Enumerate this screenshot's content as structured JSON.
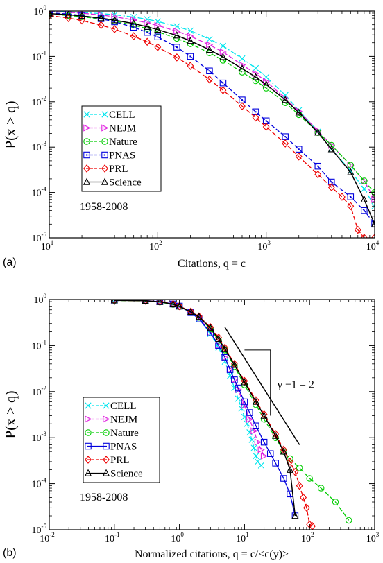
{
  "chart_data": [
    {
      "type": "line",
      "panel_label": "(a)",
      "xlabel": "Citations, q = c",
      "ylabel": "P(x > q)",
      "x_scale": "log",
      "y_scale": "log",
      "xlim": [
        10,
        10000
      ],
      "ylim": [
        1e-05,
        1
      ],
      "x_ticks": [
        {
          "base": "10",
          "exp": "1",
          "v": 10
        },
        {
          "base": "10",
          "exp": "2",
          "v": 100
        },
        {
          "base": "10",
          "exp": "3",
          "v": 1000
        },
        {
          "base": "10",
          "exp": "4",
          "v": 10000
        }
      ],
      "y_ticks": [
        {
          "base": "10",
          "exp": "-5",
          "v": 1e-05
        },
        {
          "base": "10",
          "exp": "-4",
          "v": 0.0001
        },
        {
          "base": "10",
          "exp": "-3",
          "v": 0.001
        },
        {
          "base": "10",
          "exp": "-2",
          "v": 0.01
        },
        {
          "base": "10",
          "exp": "-1",
          "v": 0.1
        },
        {
          "base": "10",
          "exp": "0",
          "v": 1
        }
      ],
      "annotation": "1958-2008",
      "legend_position": "center-left",
      "series": [
        {
          "name": "CELL",
          "color": "#00e5ee",
          "marker": "x",
          "dash": "8,3,2,3",
          "x": [
            10,
            15,
            20,
            30,
            40,
            60,
            80,
            100,
            150,
            200,
            300,
            400,
            600,
            800,
            1000,
            1500,
            2000,
            3000,
            4000,
            6000,
            8000,
            10000
          ],
          "y": [
            0.98,
            0.96,
            0.93,
            0.88,
            0.83,
            0.74,
            0.66,
            0.59,
            0.46,
            0.37,
            0.24,
            0.17,
            0.09,
            0.055,
            0.035,
            0.014,
            0.0065,
            0.0022,
            0.0009,
            0.0003,
            0.00012,
            5e-05
          ]
        },
        {
          "name": "NEJM",
          "color": "#e020e0",
          "marker": "tri-right",
          "dash": "7,3",
          "x": [
            10,
            15,
            20,
            30,
            40,
            60,
            80,
            100,
            150,
            200,
            300,
            400,
            600,
            800,
            1000,
            1500,
            2000,
            3000,
            4000,
            6000,
            8000,
            10000
          ],
          "y": [
            0.97,
            0.94,
            0.9,
            0.82,
            0.75,
            0.64,
            0.55,
            0.48,
            0.36,
            0.28,
            0.18,
            0.125,
            0.065,
            0.042,
            0.028,
            0.012,
            0.0062,
            0.0023,
            0.0011,
            0.0004,
            0.00018,
            7e-05
          ]
        },
        {
          "name": "Nature",
          "color": "#00cc00",
          "marker": "circle",
          "dash": "6,3",
          "x": [
            10,
            15,
            20,
            30,
            40,
            60,
            80,
            100,
            150,
            200,
            300,
            400,
            600,
            800,
            1000,
            1500,
            2000,
            3000,
            4000,
            6000,
            8000,
            10000
          ],
          "y": [
            0.85,
            0.8,
            0.75,
            0.67,
            0.6,
            0.49,
            0.41,
            0.35,
            0.25,
            0.19,
            0.12,
            0.082,
            0.045,
            0.029,
            0.02,
            0.0095,
            0.0052,
            0.0021,
            0.0011,
            0.0004,
            0.00018,
            0.0001
          ]
        },
        {
          "name": "PNAS",
          "color": "#0000dd",
          "marker": "square-dot",
          "dash": "6,3",
          "x": [
            10,
            15,
            20,
            30,
            40,
            60,
            80,
            100,
            150,
            200,
            300,
            400,
            600,
            800,
            1000,
            1500,
            2000,
            3000,
            4000,
            6000,
            8000,
            10000
          ],
          "y": [
            0.92,
            0.86,
            0.8,
            0.68,
            0.58,
            0.44,
            0.34,
            0.27,
            0.16,
            0.1,
            0.048,
            0.026,
            0.011,
            0.006,
            0.0038,
            0.0017,
            0.0009,
            0.00038,
            0.00017,
            8e-05,
            4e-05,
            2e-05
          ]
        },
        {
          "name": "PRL",
          "color": "#ee0000",
          "marker": "diamond",
          "dash": "7,3",
          "x": [
            10,
            15,
            20,
            30,
            40,
            60,
            80,
            100,
            150,
            200,
            300,
            400,
            600,
            800,
            1000,
            1500,
            2000,
            3000,
            4000,
            5000,
            6000,
            7000,
            8000,
            10000
          ],
          "y": [
            0.8,
            0.7,
            0.62,
            0.49,
            0.4,
            0.28,
            0.21,
            0.16,
            0.095,
            0.062,
            0.031,
            0.018,
            0.008,
            0.0045,
            0.0028,
            0.0012,
            0.00062,
            0.00025,
            0.00013,
            8e-05,
            5e-05,
            1.5e-05,
            1e-05,
            1e-05
          ]
        },
        {
          "name": "Science",
          "color": "#000000",
          "marker": "triangle",
          "dash": "",
          "x": [
            10,
            15,
            20,
            30,
            40,
            60,
            80,
            100,
            150,
            200,
            300,
            400,
            600,
            800,
            1000,
            1500,
            2000,
            3000,
            4000,
            6000,
            8000,
            10000
          ],
          "y": [
            0.88,
            0.83,
            0.78,
            0.7,
            0.63,
            0.53,
            0.45,
            0.39,
            0.29,
            0.22,
            0.14,
            0.097,
            0.054,
            0.035,
            0.024,
            0.011,
            0.0058,
            0.0021,
            0.0009,
            0.00028,
            7e-05,
            2e-05
          ]
        }
      ]
    },
    {
      "type": "line",
      "panel_label": "(b)",
      "xlabel": "Normalized citations, q = c/<c(y)>",
      "ylabel": "P(x > q)",
      "x_scale": "log",
      "y_scale": "log",
      "xlim": [
        0.01,
        1000
      ],
      "ylim": [
        1e-05,
        1
      ],
      "x_ticks": [
        {
          "base": "10",
          "exp": "-2",
          "v": 0.01
        },
        {
          "base": "10",
          "exp": "-1",
          "v": 0.1
        },
        {
          "base": "10",
          "exp": "0",
          "v": 1
        },
        {
          "base": "10",
          "exp": "1",
          "v": 10
        },
        {
          "base": "10",
          "exp": "2",
          "v": 100
        },
        {
          "base": "10",
          "exp": "3",
          "v": 1000
        }
      ],
      "y_ticks": [
        {
          "base": "10",
          "exp": "-5",
          "v": 1e-05
        },
        {
          "base": "10",
          "exp": "-4",
          "v": 0.0001
        },
        {
          "base": "10",
          "exp": "-3",
          "v": 0.001
        },
        {
          "base": "10",
          "exp": "-2",
          "v": 0.01
        },
        {
          "base": "10",
          "exp": "-1",
          "v": 0.1
        },
        {
          "base": "10",
          "exp": "0",
          "v": 1
        }
      ],
      "annotation": "1958-2008",
      "slope_label": "γ −1 = 2",
      "legend_position": "bottom-left",
      "series": [
        {
          "name": "CELL",
          "color": "#00e5ee",
          "marker": "x",
          "dash": "6,3",
          "x": [
            0.1,
            0.3,
            0.5,
            0.8,
            1,
            1.5,
            2,
            3,
            4,
            5,
            6,
            7,
            8,
            9,
            10,
            11,
            12,
            13,
            14,
            15,
            16,
            18
          ],
          "y": [
            0.97,
            0.95,
            0.9,
            0.8,
            0.72,
            0.52,
            0.38,
            0.18,
            0.09,
            0.045,
            0.022,
            0.012,
            0.007,
            0.0043,
            0.0028,
            0.002,
            0.0013,
            0.0009,
            0.0006,
            0.0004,
            0.0003,
            0.00025
          ]
        },
        {
          "name": "NEJM",
          "color": "#e020e0",
          "marker": "tri-right",
          "dash": "6,3",
          "x": [
            0.1,
            0.3,
            0.5,
            0.8,
            1,
            1.5,
            2,
            3,
            4,
            5,
            6,
            7,
            8,
            10,
            12,
            14,
            16,
            18,
            20
          ],
          "y": [
            0.97,
            0.95,
            0.9,
            0.8,
            0.72,
            0.53,
            0.4,
            0.2,
            0.1,
            0.055,
            0.03,
            0.018,
            0.011,
            0.005,
            0.0025,
            0.0014,
            0.0008,
            0.00055,
            0.0004
          ]
        },
        {
          "name": "Nature",
          "color": "#00cc00",
          "marker": "circle",
          "dash": "7,3",
          "x": [
            0.1,
            0.3,
            0.5,
            0.8,
            1,
            1.5,
            2,
            3,
            4,
            5,
            7,
            10,
            15,
            20,
            30,
            40,
            50,
            70,
            100,
            150,
            250,
            400
          ],
          "y": [
            0.95,
            0.93,
            0.88,
            0.78,
            0.7,
            0.53,
            0.41,
            0.23,
            0.13,
            0.08,
            0.035,
            0.014,
            0.0052,
            0.0025,
            0.001,
            0.0005,
            0.00035,
            0.00022,
            0.00013,
            8e-05,
            4e-05,
            1.6e-05
          ]
        },
        {
          "name": "PNAS",
          "color": "#0000dd",
          "marker": "square",
          "dash": "",
          "x": [
            0.1,
            0.3,
            0.5,
            0.8,
            1,
            1.5,
            2,
            3,
            4,
            5,
            6,
            7,
            8,
            10,
            12,
            15,
            20,
            25,
            30,
            40,
            50,
            60
          ],
          "y": [
            0.97,
            0.95,
            0.9,
            0.8,
            0.72,
            0.52,
            0.38,
            0.19,
            0.1,
            0.055,
            0.03,
            0.018,
            0.012,
            0.006,
            0.0035,
            0.0018,
            0.0008,
            0.00045,
            0.00028,
            0.00013,
            6e-05,
            2e-05
          ]
        },
        {
          "name": "PRL",
          "color": "#ee0000",
          "marker": "diamond",
          "dash": "7,3",
          "x": [
            0.1,
            0.3,
            0.5,
            0.8,
            1,
            1.5,
            2,
            3,
            4,
            5,
            7,
            10,
            15,
            20,
            30,
            40,
            50,
            60,
            70,
            80,
            90,
            100,
            110
          ],
          "y": [
            0.96,
            0.94,
            0.9,
            0.8,
            0.72,
            0.55,
            0.43,
            0.25,
            0.15,
            0.09,
            0.04,
            0.017,
            0.0065,
            0.0032,
            0.0012,
            0.00055,
            0.0003,
            0.00018,
            9e-05,
            5e-05,
            3e-05,
            1.3e-05,
            1.2e-05
          ]
        },
        {
          "name": "Science",
          "color": "#000000",
          "marker": "triangle",
          "dash": "",
          "x": [
            0.1,
            0.3,
            0.5,
            0.8,
            1,
            1.5,
            2,
            3,
            4,
            5,
            7,
            10,
            15,
            20,
            30,
            40,
            50,
            60
          ],
          "y": [
            0.96,
            0.94,
            0.89,
            0.79,
            0.71,
            0.54,
            0.42,
            0.24,
            0.14,
            0.085,
            0.038,
            0.016,
            0.006,
            0.003,
            0.0011,
            0.0005,
            0.0002,
            2e-05
          ]
        }
      ]
    }
  ]
}
